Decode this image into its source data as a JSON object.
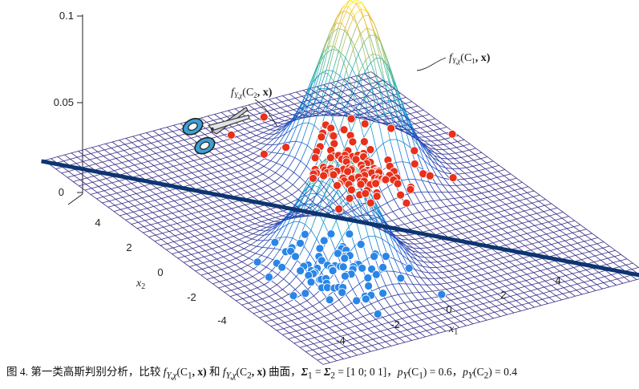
{
  "figure": {
    "z_ticks": [
      "0",
      "0.05",
      "0.1"
    ],
    "x1_ticks": [
      "-4",
      "-2",
      "0",
      "2",
      "4"
    ],
    "x2_ticks": [
      "-4",
      "-2",
      "0",
      "2",
      "4"
    ],
    "x1_label": "x",
    "x1_sub": "1",
    "x2_label": "x",
    "x2_sub": "2",
    "callout_c1": {
      "f": "f",
      "sub": "Y,χ",
      "args": "(C",
      "argsub": "1",
      "tail": ", x)"
    },
    "callout_c2": {
      "f": "f",
      "sub": "Y,χ",
      "args": "(C",
      "argsub": "2",
      "tail": ", x)"
    },
    "colors": {
      "grid": "#3a2fa0",
      "class1_points": "#e8301a",
      "class2_points": "#2a86e6",
      "boundary": "#0d3570",
      "scissors": "#3b9fd6"
    }
  },
  "caption": {
    "prefix": "图 4. 第一类高斯判别分析，比较 ",
    "f1": "f",
    "f1_sub": "Y,χ",
    "f1_args": "(C",
    "f1_argsub": "1",
    "f1_tail": ", x)",
    "and": " 和 ",
    "f2": "f",
    "f2_sub": "Y,χ",
    "f2_args": "(C",
    "f2_argsub": "2",
    "f2_tail": ", x)",
    "mid": " 曲面，",
    "sigma": "Σ",
    "sigma1": "1",
    "eq": " = ",
    "sigma2": "2",
    "matrix": " = [1 0; 0 1]，",
    "p1": "p",
    "p1_sub": "Y",
    "p1_arg": "(C",
    "p1_argsub": "1",
    "p1_val": ") = 0.6，",
    "p2": "p",
    "p2_sub": "Y",
    "p2_arg": "(C",
    "p2_argsub": "2",
    "p2_val": ") = 0.4"
  }
}
